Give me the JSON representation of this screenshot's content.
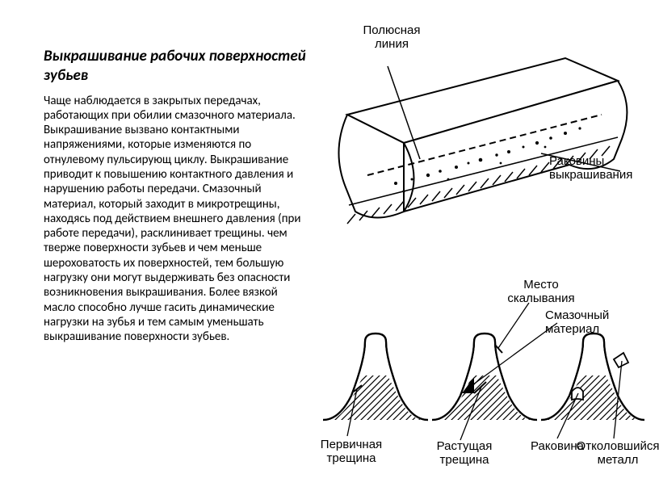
{
  "title": "Выкрашивание рабочих поверхностей зубьев",
  "body": "Чаще   наблюдается в закрытых передачах, работающих при обилии смазочного материала. Выкрашивание  вызвано контактными напряжениями, которые изменяются по отнулевому пульсирующ циклу. Выкрашивание приводит к повышению контактного давления и нарушению работы передачи. Смазочный материал, который заходит в микротрещины, находясь под действием внешнего давления (при работе передачи), расклинивает трещины. чем тверже поверхности зубьев и чем меньше шероховатость их поверхностей, тем большую нагрузку они могут выдерживать без опасности возникновения выкрашивания. Более вязкой масло способно лучше гасить динамические нагрузки на зубья и тем самым уменьшать выкрашивание поверхности зубьев.",
  "fig_top": {
    "labels": {
      "pitch_line": "Полюсная\nлиния",
      "pits": "Раковины\nвыкрашивания"
    }
  },
  "fig_bottom": {
    "labels": {
      "chip_place": "Место\nскалывания",
      "lubricant": "Смазочный\nматериал",
      "primary_crack": "Первичная\nтрещина",
      "growing_crack": "Растущая\nтрещина",
      "cavity": "Раковина",
      "chipped_metal": "Отколовшийся\nметалл"
    }
  },
  "colors": {
    "bg": "#ffffff",
    "ink": "#000000",
    "hatch": "#333333"
  }
}
